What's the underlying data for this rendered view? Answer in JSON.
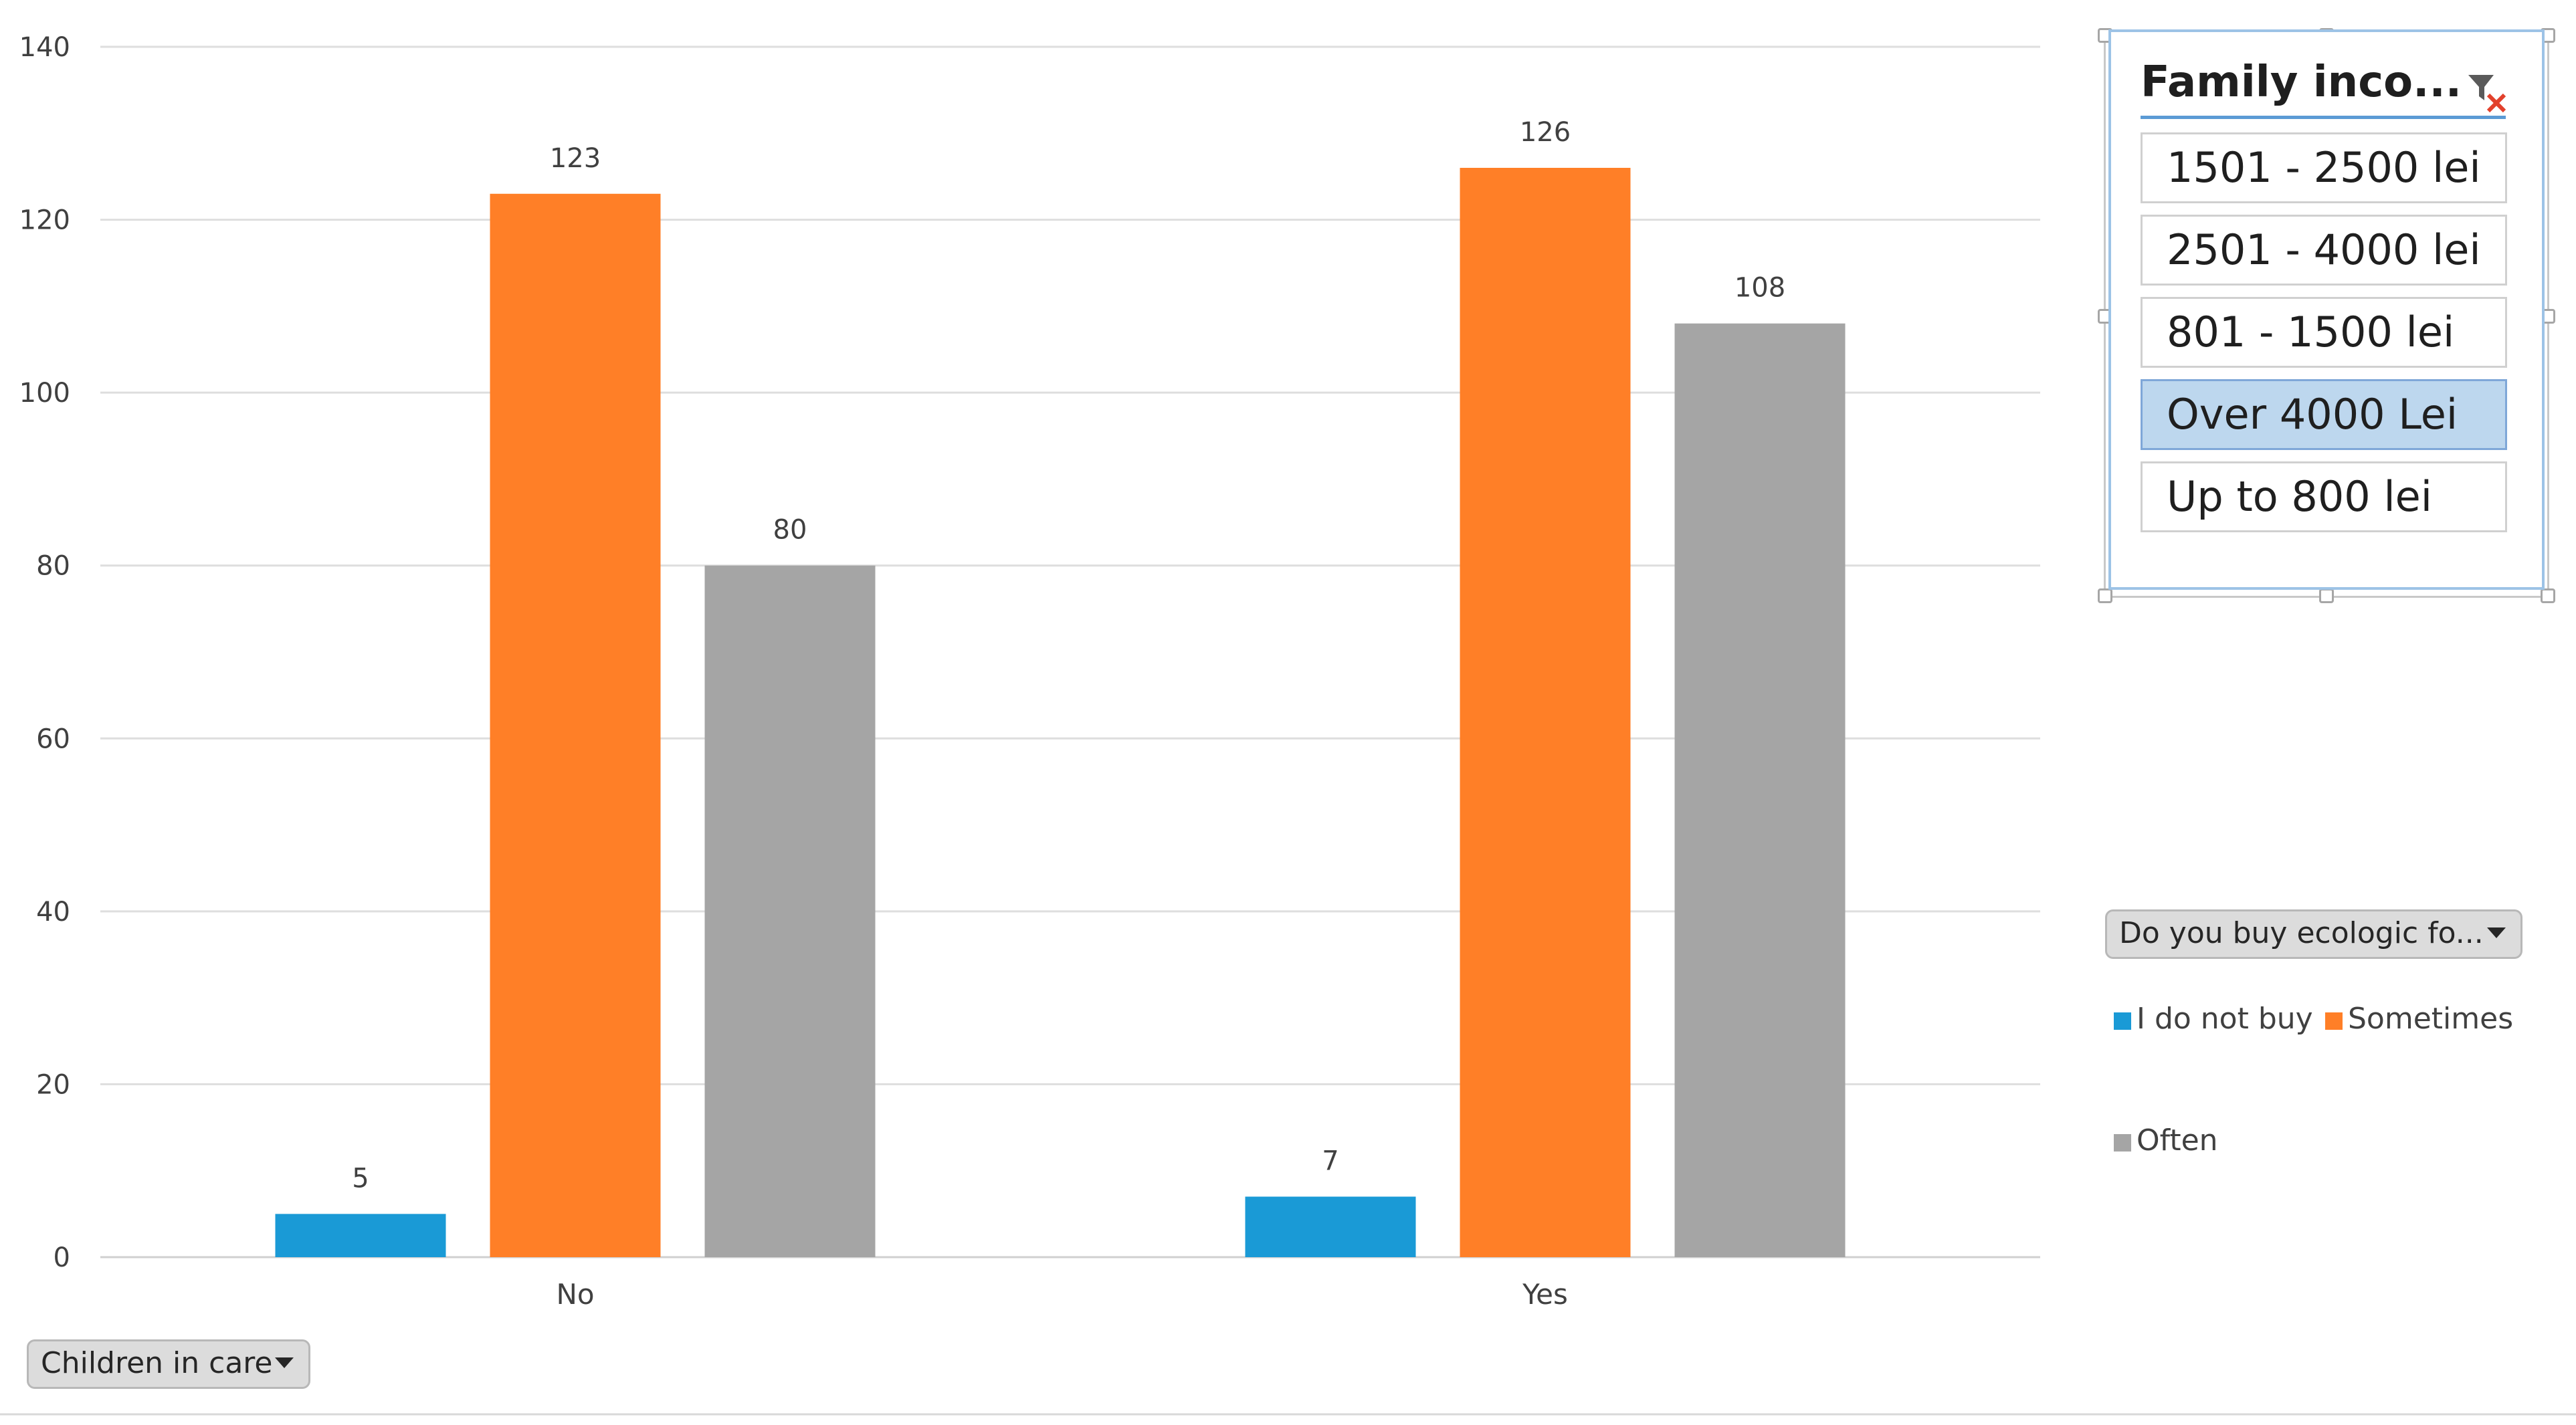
{
  "chart_data": {
    "type": "bar",
    "categories": [
      "No",
      "Yes"
    ],
    "series": [
      {
        "name": "I do not buy",
        "values": [
          5,
          7
        ],
        "color": "#1a9ad6"
      },
      {
        "name": "Sometimes",
        "values": [
          123,
          126
        ],
        "color": "#ff7f27"
      },
      {
        "name": "Often",
        "values": [
          80,
          108
        ],
        "color": "#a5a5a5"
      }
    ],
    "title": "",
    "xlabel": "",
    "ylabel": "",
    "ylim": [
      0,
      140
    ],
    "yticks": [
      0,
      20,
      40,
      60,
      80,
      100,
      120,
      140
    ],
    "grid": true,
    "legend_position": "right"
  },
  "slicer": {
    "title": "Family inco...",
    "clear_filter_icon": "clear-filter-icon",
    "items": [
      {
        "label": "1501 - 2500 lei",
        "selected": false
      },
      {
        "label": "2501 - 4000 lei",
        "selected": false
      },
      {
        "label": "801 - 1500 lei",
        "selected": false
      },
      {
        "label": "Over 4000 Lei",
        "selected": true
      },
      {
        "label": "Up to 800 lei",
        "selected": false
      }
    ]
  },
  "legend_field_button": {
    "label": "Do you buy ecologic fo..."
  },
  "axis_field_button": {
    "label": "Children in care"
  },
  "legend": {
    "items": [
      "I do not buy",
      "Sometimes",
      "Often"
    ]
  }
}
